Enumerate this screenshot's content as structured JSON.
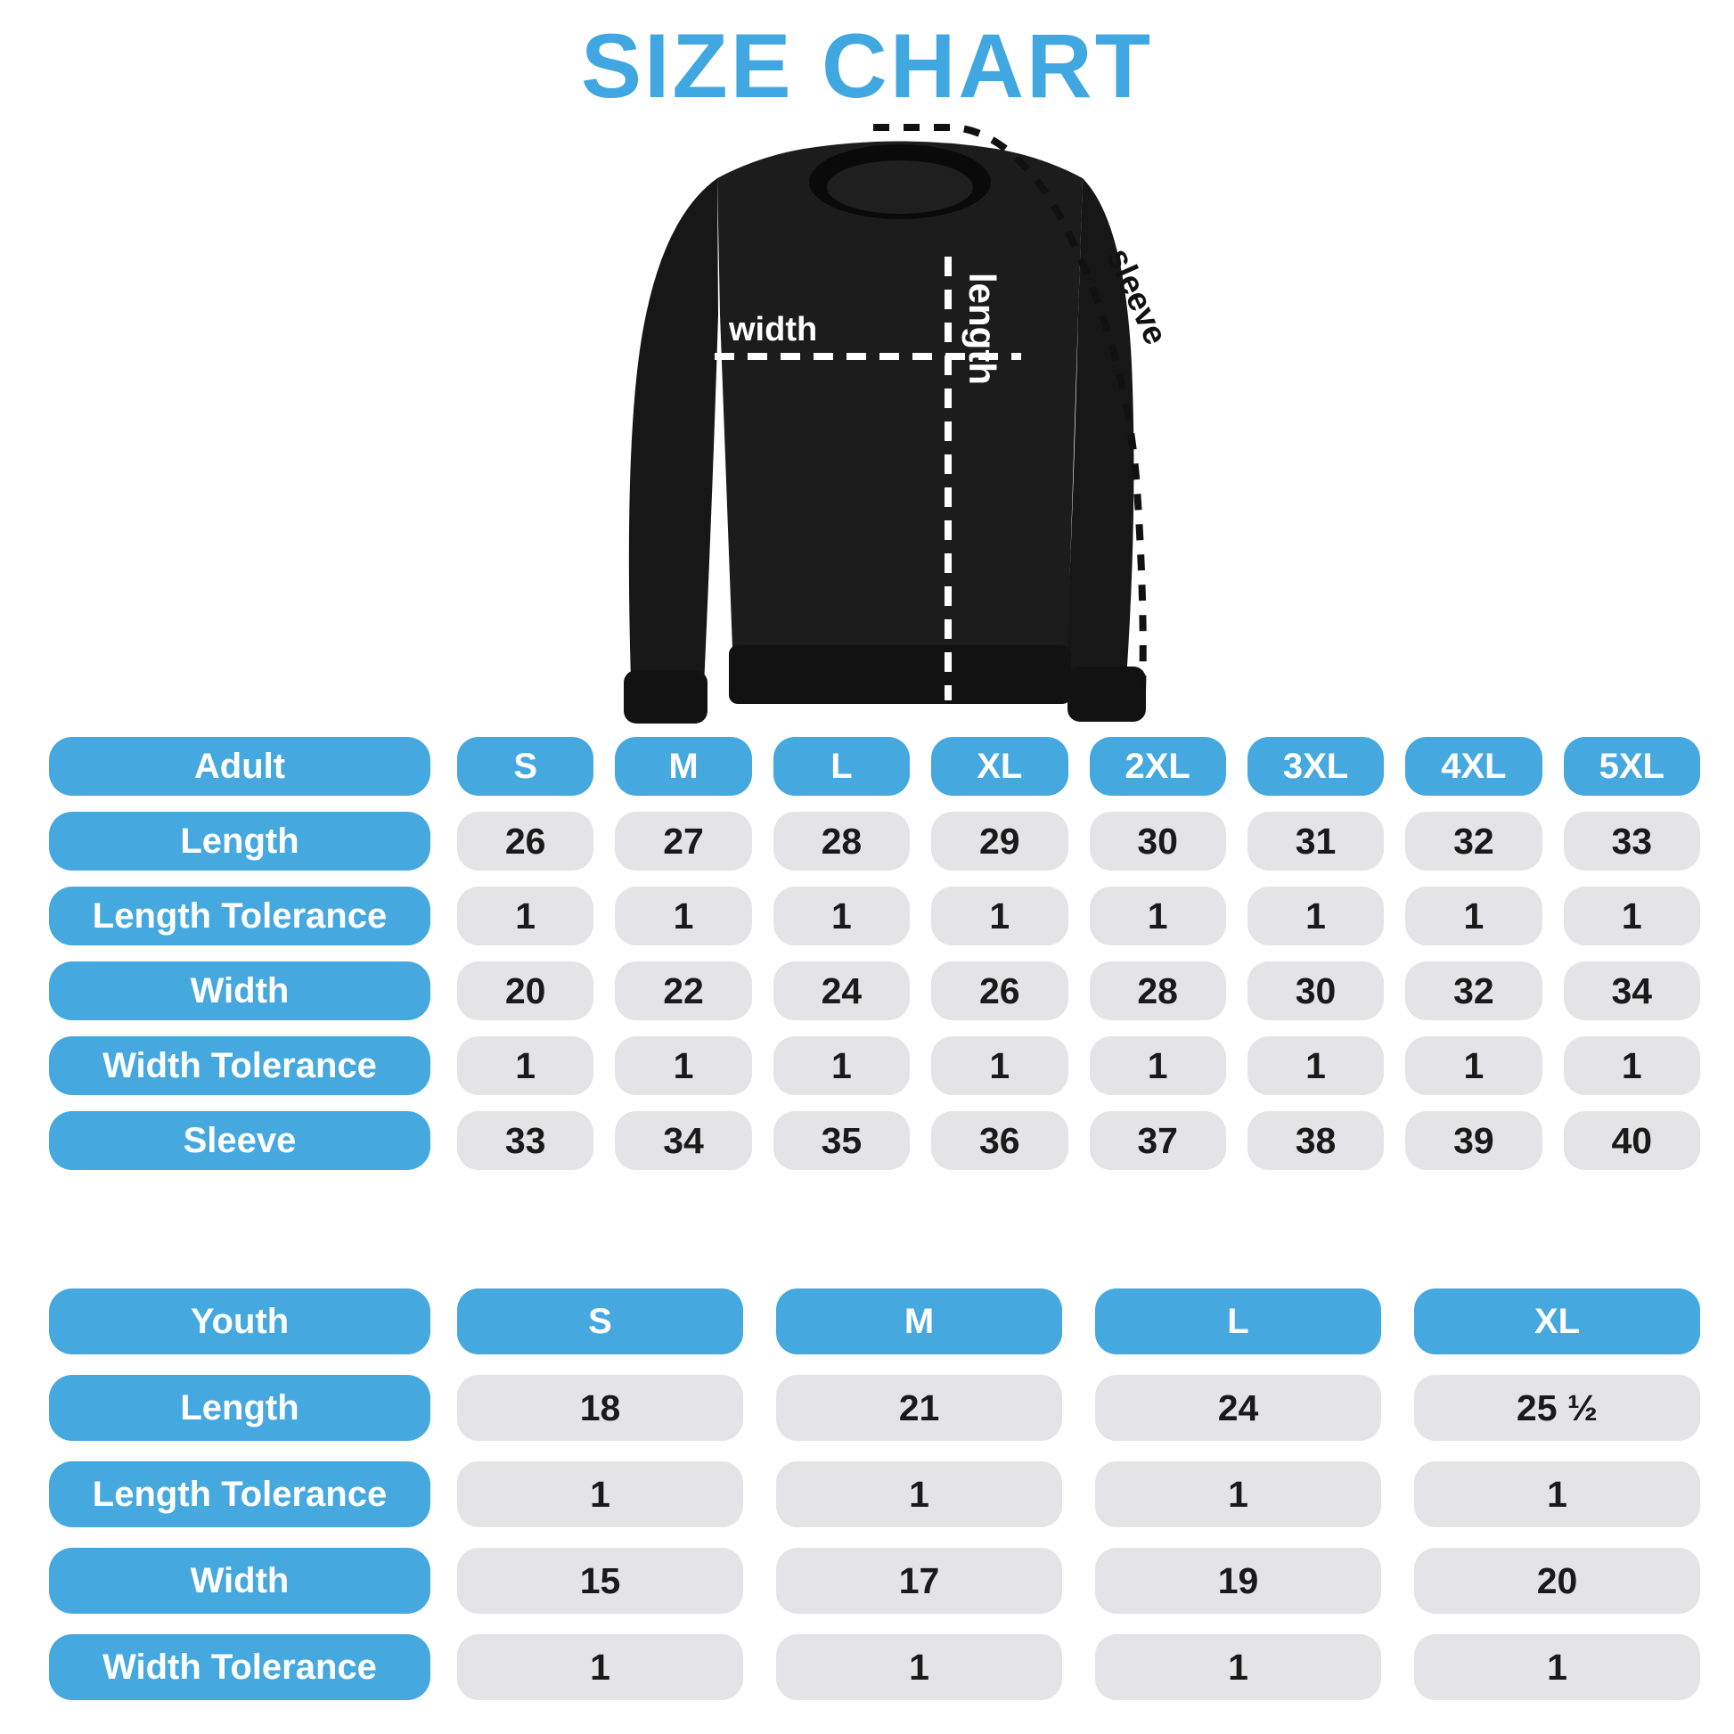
{
  "title": "SIZE CHART",
  "colors": {
    "accent": "#45a8df",
    "title_blue": "#41a7e0",
    "cell_gray": "#e4e4e6",
    "number_ink": "#1a1a1a",
    "garment_black": "#1c1c1c",
    "annotation_white": "#ffffff",
    "annotation_black": "#111111"
  },
  "diagram": {
    "length_label": "length",
    "width_label": "width",
    "sleeve_label": "sleeve"
  },
  "adult_table": {
    "header": {
      "label": "Adult",
      "sizes": [
        "S",
        "M",
        "L",
        "XL",
        "2XL",
        "3XL",
        "4XL",
        "5XL"
      ]
    },
    "rows": [
      {
        "label": "Length",
        "values": [
          "26",
          "27",
          "28",
          "29",
          "30",
          "31",
          "32",
          "33"
        ]
      },
      {
        "label": "Length Tolerance",
        "values": [
          "1",
          "1",
          "1",
          "1",
          "1",
          "1",
          "1",
          "1"
        ]
      },
      {
        "label": "Width",
        "values": [
          "20",
          "22",
          "24",
          "26",
          "28",
          "30",
          "32",
          "34"
        ]
      },
      {
        "label": "Width Tolerance",
        "values": [
          "1",
          "1",
          "1",
          "1",
          "1",
          "1",
          "1",
          "1"
        ]
      },
      {
        "label": "Sleeve",
        "values": [
          "33",
          "34",
          "35",
          "36",
          "37",
          "38",
          "39",
          "40"
        ]
      }
    ]
  },
  "youth_table": {
    "header": {
      "label": "Youth",
      "sizes": [
        "S",
        "M",
        "L",
        "XL"
      ]
    },
    "rows": [
      {
        "label": "Length",
        "values": [
          "18",
          "21",
          "24",
          "25 ½"
        ]
      },
      {
        "label": "Length Tolerance",
        "values": [
          "1",
          "1",
          "1",
          "1"
        ]
      },
      {
        "label": "Width",
        "values": [
          "15",
          "17",
          "19",
          "20"
        ]
      },
      {
        "label": "Width Tolerance",
        "values": [
          "1",
          "1",
          "1",
          "1"
        ]
      }
    ]
  }
}
